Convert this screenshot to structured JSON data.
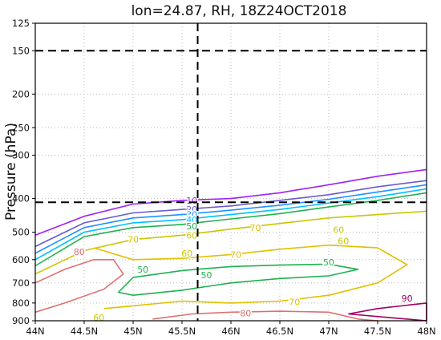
{
  "chart_data": {
    "type": "contour",
    "title": "lon=24.87, RH, 18Z24OCT2018",
    "xlabel": "",
    "ylabel": "Pressure (hPa)",
    "x_ticks": [
      "44N",
      "44.5N",
      "45N",
      "45.5N",
      "46N",
      "46.5N",
      "47N",
      "47.5N",
      "48N"
    ],
    "x_tick_values": [
      44,
      44.5,
      45,
      45.5,
      46,
      46.5,
      47,
      47.5,
      48
    ],
    "y_ticks": [
      "125",
      "150",
      "200",
      "250",
      "300",
      "400",
      "500",
      "600",
      "700",
      "800",
      "900"
    ],
    "y_tick_values": [
      125,
      150,
      200,
      250,
      300,
      400,
      500,
      600,
      700,
      800,
      900
    ],
    "xlim": [
      44,
      48
    ],
    "ylim": [
      900,
      125
    ],
    "y_scale": "log",
    "grid": true,
    "reference_lines": {
      "horizontal_hpa": [
        150,
        410
      ],
      "vertical_lat": 45.66
    },
    "contours": [
      {
        "level": 10,
        "color": "#a020f0",
        "points": [
          [
            44,
            510
          ],
          [
            44.5,
            450
          ],
          [
            45,
            415
          ],
          [
            45.5,
            405
          ],
          [
            46,
            400
          ],
          [
            46.5,
            385
          ],
          [
            47,
            365
          ],
          [
            47.5,
            345
          ],
          [
            48,
            330
          ]
        ]
      },
      {
        "level": 20,
        "color": "#6a5acd",
        "points": [
          [
            44,
            550
          ],
          [
            44.5,
            470
          ],
          [
            45,
            440
          ],
          [
            45.5,
            430
          ],
          [
            46,
            420
          ],
          [
            46.5,
            405
          ],
          [
            47,
            390
          ],
          [
            47.5,
            370
          ],
          [
            48,
            355
          ]
        ]
      },
      {
        "level": 30,
        "color": "#1e90ff",
        "points": [
          [
            44,
            575
          ],
          [
            44.5,
            485
          ],
          [
            45,
            455
          ],
          [
            45.5,
            445
          ],
          [
            46,
            432
          ],
          [
            46.5,
            418
          ],
          [
            47,
            402
          ],
          [
            47.5,
            383
          ],
          [
            48,
            365
          ]
        ]
      },
      {
        "level": 40,
        "color": "#00bfff",
        "points": [
          [
            44,
            600
          ],
          [
            44.5,
            500
          ],
          [
            45,
            470
          ],
          [
            45.5,
            460
          ],
          [
            46,
            445
          ],
          [
            46.5,
            430
          ],
          [
            47,
            412
          ],
          [
            47.5,
            395
          ],
          [
            48,
            375
          ]
        ]
      },
      {
        "level": 50,
        "color": "#20b050",
        "points": [
          [
            44,
            625
          ],
          [
            44.5,
            515
          ],
          [
            45,
            485
          ],
          [
            45.5,
            475
          ],
          [
            46,
            458
          ],
          [
            46.5,
            442
          ],
          [
            47,
            423
          ],
          [
            47.5,
            405
          ],
          [
            48,
            385
          ]
        ]
      },
      {
        "level": 50,
        "color": "#20b050",
        "points": [
          [
            45,
            675
          ],
          [
            45.5,
            645
          ],
          [
            46,
            628
          ],
          [
            46.5,
            622
          ],
          [
            47,
            618
          ],
          [
            47.3,
            640
          ],
          [
            47,
            668
          ],
          [
            46.5,
            680
          ],
          [
            46,
            700
          ],
          [
            45.5,
            735
          ],
          [
            45,
            760
          ],
          [
            44.85,
            745
          ],
          [
            45,
            675
          ]
        ]
      },
      {
        "level": 60,
        "color": "#c8c800",
        "points": [
          [
            44,
            660
          ],
          [
            44.5,
            565
          ],
          [
            45,
            525
          ],
          [
            45.5,
            510
          ],
          [
            46,
            490
          ],
          [
            46.5,
            472
          ],
          [
            47,
            455
          ],
          [
            47.5,
            445
          ],
          [
            48,
            435
          ]
        ]
      },
      {
        "level": 70,
        "color": "#e0c000",
        "points": [
          [
            44.6,
            555
          ],
          [
            45,
            600
          ],
          [
            45.5,
            595
          ],
          [
            46,
            580
          ],
          [
            46.5,
            560
          ],
          [
            47,
            545
          ],
          [
            47.5,
            555
          ],
          [
            47.8,
            620
          ],
          [
            47.5,
            700
          ],
          [
            47,
            760
          ],
          [
            46.5,
            790
          ],
          [
            46,
            800
          ],
          [
            45.5,
            790
          ],
          [
            45,
            815
          ],
          [
            44.7,
            830
          ]
        ]
      },
      {
        "level": 80,
        "color": "#e07070",
        "points": [
          [
            44,
            700
          ],
          [
            44.3,
            640
          ],
          [
            44.6,
            600
          ],
          [
            44.8,
            600
          ],
          [
            44.9,
            660
          ],
          [
            44.7,
            730
          ],
          [
            44.3,
            800
          ],
          [
            44,
            850
          ]
        ]
      },
      {
        "level": 80,
        "color": "#e07070",
        "points": [
          [
            45.2,
            890
          ],
          [
            45.6,
            860
          ],
          [
            46,
            850
          ],
          [
            46.5,
            845
          ],
          [
            47,
            850
          ],
          [
            47.3,
            890
          ],
          [
            47.5,
            900
          ]
        ]
      },
      {
        "level": 90,
        "color": "#a00060",
        "points": [
          [
            47.2,
            860
          ],
          [
            47.5,
            830
          ],
          [
            48,
            800
          ],
          [
            48,
            900
          ],
          [
            47.6,
            880
          ],
          [
            47.2,
            860
          ]
        ]
      }
    ],
    "contour_labels": [
      {
        "text": "10",
        "x": 45.6,
        "y": 405,
        "color": "#a020f0"
      },
      {
        "text": "20",
        "x": 45.6,
        "y": 430,
        "color": "#6a5acd"
      },
      {
        "text": "30",
        "x": 45.6,
        "y": 445,
        "color": "#1e90ff"
      },
      {
        "text": "40",
        "x": 45.6,
        "y": 460,
        "color": "#00bfff"
      },
      {
        "text": "50",
        "x": 45.6,
        "y": 480,
        "color": "#20b050"
      },
      {
        "text": "60",
        "x": 45.6,
        "y": 510,
        "color": "#c8c800"
      },
      {
        "text": "70",
        "x": 45.0,
        "y": 525,
        "color": "#e0c000"
      },
      {
        "text": "70",
        "x": 46.25,
        "y": 485,
        "color": "#e0c000"
      },
      {
        "text": "60",
        "x": 47.1,
        "y": 492,
        "color": "#c8c800"
      },
      {
        "text": "60",
        "x": 47.15,
        "y": 530,
        "color": "#c8c800"
      },
      {
        "text": "80",
        "x": 44.45,
        "y": 570,
        "color": "#e07070"
      },
      {
        "text": "60",
        "x": 45.55,
        "y": 575,
        "color": "#c8c800"
      },
      {
        "text": "70",
        "x": 46.05,
        "y": 580,
        "color": "#e0c000"
      },
      {
        "text": "50",
        "x": 45.1,
        "y": 640,
        "color": "#20b050"
      },
      {
        "text": "50",
        "x": 45.75,
        "y": 665,
        "color": "#20b050"
      },
      {
        "text": "50",
        "x": 47.0,
        "y": 610,
        "color": "#20b050"
      },
      {
        "text": "70",
        "x": 46.65,
        "y": 795,
        "color": "#e0c000"
      },
      {
        "text": "80",
        "x": 46.15,
        "y": 855,
        "color": "#e07070"
      },
      {
        "text": "90",
        "x": 47.8,
        "y": 775,
        "color": "#a00060"
      },
      {
        "text": "60",
        "x": 44.65,
        "y": 880,
        "color": "#c8c800"
      }
    ]
  }
}
